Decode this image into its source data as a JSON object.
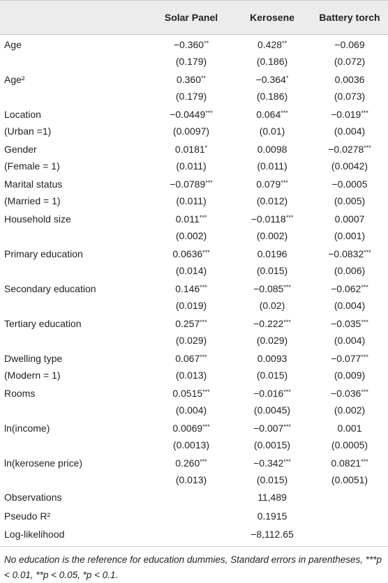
{
  "table": {
    "header": [
      "Solar Panel",
      "Kerosene",
      "Battery torch"
    ],
    "rows": [
      {
        "label": [
          "Age"
        ],
        "cells": [
          [
            "−0.360**",
            "(0.179)"
          ],
          [
            "0.428**",
            "(0.186)"
          ],
          [
            "−0.069",
            "(0.072)"
          ]
        ]
      },
      {
        "label": [
          "Age²"
        ],
        "cells": [
          [
            "0.360**",
            "(0.179)"
          ],
          [
            "−0.364*",
            "(0.186)"
          ],
          [
            "0.0036",
            "(0.073)"
          ]
        ]
      },
      {
        "label": [
          "Location",
          "(Urban =1)"
        ],
        "cells": [
          [
            "−0.0449***",
            "(0.0097)"
          ],
          [
            "0.064***",
            "(0.01)"
          ],
          [
            "−0.019***",
            "(0.004)"
          ]
        ]
      },
      {
        "label": [
          "Gender",
          "(Female = 1)"
        ],
        "cells": [
          [
            "0.0181*",
            "(0.011)"
          ],
          [
            "0.0098",
            "(0.011)"
          ],
          [
            "−0.0278***",
            "(0.0042)"
          ]
        ]
      },
      {
        "label": [
          "Marital status",
          "(Married = 1)"
        ],
        "cells": [
          [
            "−0.0789***",
            "(0.011)"
          ],
          [
            "0.079***",
            "(0.012)"
          ],
          [
            "−0.0005",
            "(0.005)"
          ]
        ]
      },
      {
        "label": [
          "Household size"
        ],
        "cells": [
          [
            "0.011***",
            "(0.002)"
          ],
          [
            "−0.0118***",
            "(0.002)"
          ],
          [
            "0.0007",
            "(0.001)"
          ]
        ]
      },
      {
        "label": [
          "Primary education"
        ],
        "cells": [
          [
            "0.0636***",
            "(0.014)"
          ],
          [
            "0.0196",
            "(0.015)"
          ],
          [
            "−0.0832***",
            "(0.006)"
          ]
        ]
      },
      {
        "label": [
          "Secondary education"
        ],
        "cells": [
          [
            "0.146***",
            "(0.019)"
          ],
          [
            "−0.085***",
            "(0.02)"
          ],
          [
            "−0.062***",
            "(0.004)"
          ]
        ]
      },
      {
        "label": [
          "Tertiary education"
        ],
        "cells": [
          [
            "0.257***",
            "(0.029)"
          ],
          [
            "−0.222***",
            "(0.029)"
          ],
          [
            "−0.035***",
            "(0.004)"
          ]
        ]
      },
      {
        "label": [
          "Dwelling type",
          "(Modern = 1)"
        ],
        "cells": [
          [
            "0.067***",
            "(0.013)"
          ],
          [
            "0.0093",
            "(0.015)"
          ],
          [
            "−0.077***",
            "(0.009)"
          ]
        ]
      },
      {
        "label": [
          "Rooms"
        ],
        "cells": [
          [
            "0.0515***",
            "(0.004)"
          ],
          [
            "−0.016***",
            "(0.0045)"
          ],
          [
            "−0.036***",
            "(0.002)"
          ]
        ]
      },
      {
        "label": [
          "ln(income)"
        ],
        "cells": [
          [
            "0.0069***",
            "(0.0013)"
          ],
          [
            "−0.007***",
            "(0.0015)"
          ],
          [
            "0.001",
            "(0.0005)"
          ]
        ]
      },
      {
        "label": [
          "ln(kerosene price)"
        ],
        "cells": [
          [
            "0.260***",
            "(0.013)"
          ],
          [
            "−0.342***",
            "(0.015)"
          ],
          [
            "0.0821***",
            "(0.0051)"
          ]
        ]
      }
    ],
    "stats": [
      {
        "label": "Observations",
        "value": "11,489"
      },
      {
        "label": "Pseudo R²",
        "value": "0.1915"
      },
      {
        "label": "Log-likelihood",
        "value": "−8,112.65"
      }
    ],
    "footnote": "No education is the reference for education dummies, Standard errors in parentheses, ***p < 0.01, **p < 0.05, *p < 0.1."
  }
}
